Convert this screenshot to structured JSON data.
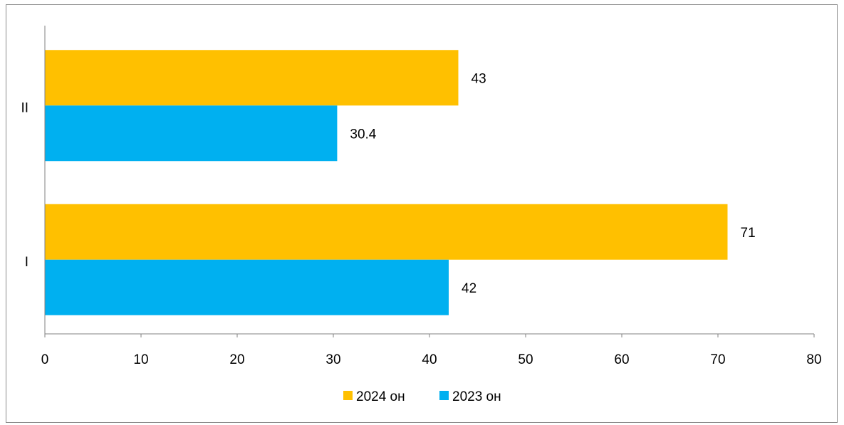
{
  "chart_data": {
    "type": "bar",
    "orientation": "horizontal",
    "categories": [
      "I",
      "II"
    ],
    "series": [
      {
        "name": "2024 он",
        "values": [
          71,
          43
        ],
        "color": "#FFC000"
      },
      {
        "name": "2023 он",
        "values": [
          42,
          30.4
        ],
        "color": "#00B0F0"
      }
    ],
    "xlim": [
      0,
      80
    ],
    "x_ticks": [
      0,
      10,
      20,
      30,
      40,
      50,
      60,
      70,
      80
    ],
    "title": "",
    "xlabel": "",
    "ylabel": "",
    "grid": false,
    "legend_position": "bottom"
  }
}
